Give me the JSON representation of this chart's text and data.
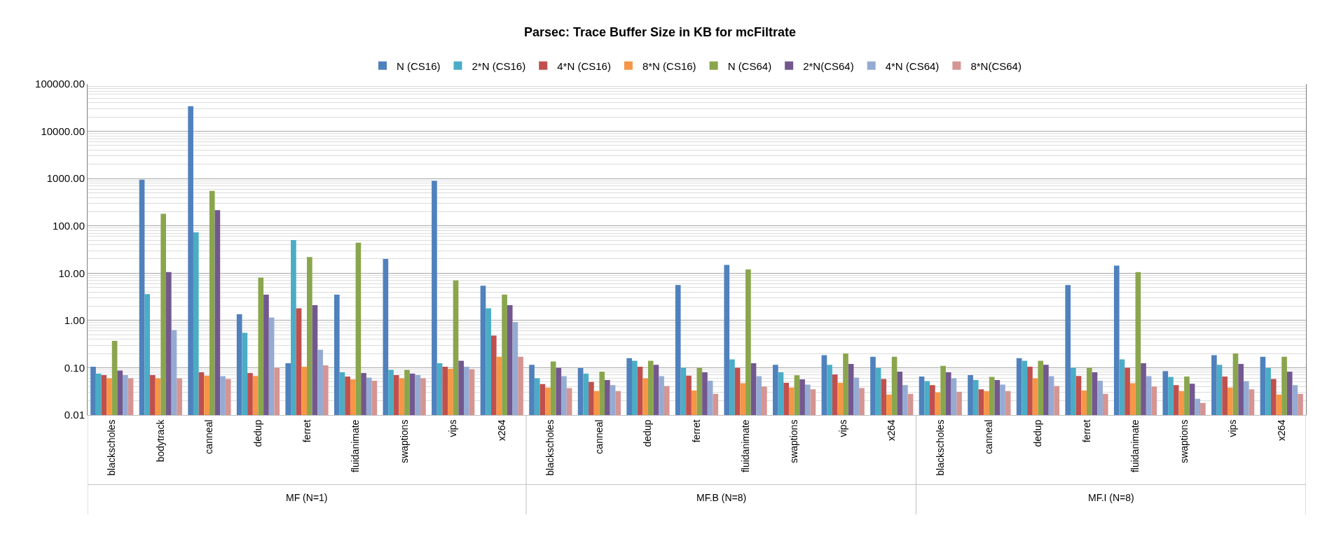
{
  "chart_data": {
    "type": "bar",
    "title": "Parsec: Trace Buffer Size in KB for mcFiltrate",
    "categories": [
      "blackscholes",
      "bodytrack",
      "canneal",
      "dedup",
      "ferret",
      "fluidanimate",
      "swaptions",
      "vips",
      "x264",
      "blackscholes",
      "canneal",
      "dedup",
      "ferret",
      "fluidanimate",
      "swaptions",
      "vips",
      "x264",
      "blackscholes",
      "canneal",
      "dedup",
      "ferret",
      "fluidanimate",
      "swaptions",
      "vips",
      "x264"
    ],
    "annotations": [
      "MF (N=1)",
      "MF.B (N=8)",
      "MF.I (N=8)"
    ],
    "series": [
      {
        "name": "N (CS16)",
        "color": "#4f81bd",
        "values": [
          0.105,
          950,
          34000,
          1.35,
          0.125,
          3.5,
          20,
          900,
          5.4,
          0.115,
          0.098,
          0.16,
          5.6,
          15,
          0.115,
          0.185,
          0.17,
          0.065,
          0.07,
          0.16,
          5.6,
          14.5,
          0.085,
          0.185,
          0.17
        ]
      },
      {
        "name": "2*N (CS16)",
        "color": "#4bacc6",
        "values": [
          0.075,
          3.6,
          73,
          0.55,
          50,
          0.08,
          0.09,
          0.125,
          1.8,
          0.06,
          0.075,
          0.14,
          0.1,
          0.15,
          0.08,
          0.115,
          0.098,
          0.052,
          0.055,
          0.14,
          0.1,
          0.15,
          0.064,
          0.115,
          0.098
        ]
      },
      {
        "name": "4*N (CS16)",
        "color": "#c0504d",
        "values": [
          0.07,
          0.07,
          0.08,
          0.077,
          1.8,
          0.065,
          0.07,
          0.105,
          0.48,
          0.045,
          0.05,
          0.105,
          0.068,
          0.1,
          0.048,
          0.072,
          0.058,
          0.043,
          0.035,
          0.105,
          0.067,
          0.1,
          0.043,
          0.065,
          0.058
        ]
      },
      {
        "name": "8*N (CS16)",
        "color": "#f79646",
        "values": [
          0.06,
          0.06,
          0.068,
          0.067,
          0.105,
          0.057,
          0.06,
          0.095,
          0.17,
          0.038,
          0.032,
          0.06,
          0.033,
          0.047,
          0.038,
          0.048,
          0.027,
          0.03,
          0.032,
          0.06,
          0.033,
          0.047,
          0.032,
          0.038,
          0.027
        ]
      },
      {
        "name": "N (CS64)",
        "color": "#8aa64d",
        "values": [
          0.37,
          180,
          550,
          8,
          22,
          44,
          0.09,
          7,
          3.5,
          0.135,
          0.083,
          0.14,
          0.1,
          12,
          0.069,
          0.2,
          0.17,
          0.11,
          0.064,
          0.14,
          0.1,
          10.5,
          0.065,
          0.2,
          0.17
        ]
      },
      {
        "name": "2*N(CS64)",
        "color": "#72588f",
        "values": [
          0.087,
          10.5,
          215,
          3.5,
          2.1,
          0.077,
          0.075,
          0.14,
          2.1,
          0.1,
          0.055,
          0.115,
          0.08,
          0.125,
          0.057,
          0.12,
          0.083,
          0.08,
          0.055,
          0.115,
          0.08,
          0.125,
          0.046,
          0.12,
          0.083
        ]
      },
      {
        "name": "4*N (CS64)",
        "color": "#95abd3",
        "values": [
          0.07,
          0.63,
          0.066,
          1.15,
          0.24,
          0.062,
          0.07,
          0.105,
          0.92,
          0.066,
          0.043,
          0.066,
          0.053,
          0.066,
          0.044,
          0.062,
          0.043,
          0.06,
          0.044,
          0.066,
          0.053,
          0.066,
          0.022,
          0.052,
          0.043
        ]
      },
      {
        "name": "8*N(CS64)",
        "color": "#d59593",
        "values": [
          0.06,
          0.06,
          0.058,
          0.1,
          0.112,
          0.053,
          0.06,
          0.093,
          0.17,
          0.037,
          0.032,
          0.041,
          0.028,
          0.04,
          0.035,
          0.037,
          0.028,
          0.031,
          0.032,
          0.041,
          0.028,
          0.04,
          0.018,
          0.035,
          0.028
        ]
      }
    ],
    "log": "y",
    "ylim": [
      0.01,
      100000
    ],
    "yticks": [
      {
        "value": 0.01,
        "label": "0.01"
      },
      {
        "value": 0.1,
        "label": "0.10"
      },
      {
        "value": 1,
        "label": "1.00"
      },
      {
        "value": 10,
        "label": "10.00"
      },
      {
        "value": 100,
        "label": "100.00"
      },
      {
        "value": 1000,
        "label": "1000.00"
      },
      {
        "value": 10000,
        "label": "10000.00"
      },
      {
        "value": 100000,
        "label": "100000.00"
      }
    ],
    "grid": "y",
    "legend": "top"
  }
}
